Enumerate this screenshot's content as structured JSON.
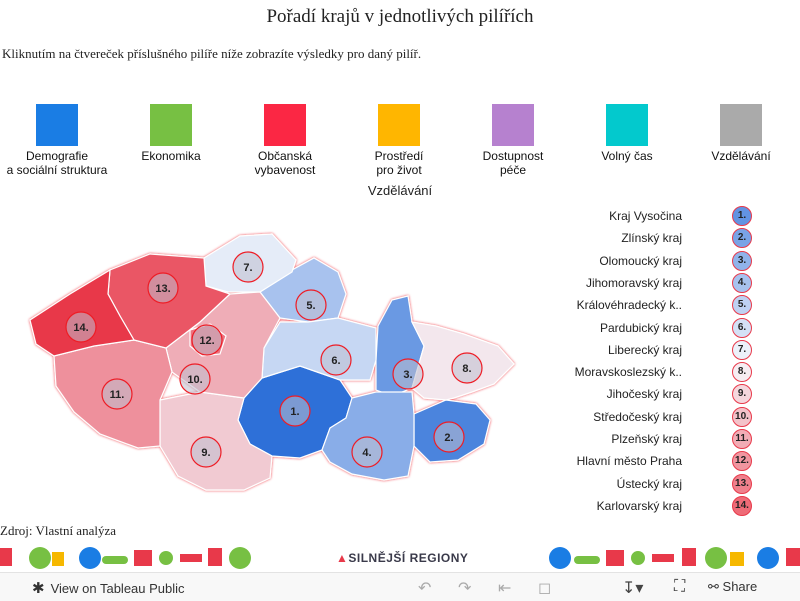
{
  "header": {
    "title": "Pořadí krajů v jednotlivých pilířích",
    "subtitle": "Kliknutím na čtvereček příslušného pilíře níže zobrazíte výsledky pro daný pilíř."
  },
  "pillars": [
    {
      "label": "Demografie\na sociální struktura",
      "color": "#1a7de4"
    },
    {
      "label": "Ekonomika",
      "color": "#77c043"
    },
    {
      "label": "Občanská\nvybavenost",
      "color": "#fb2744"
    },
    {
      "label": "Prostředí\npro život",
      "color": "#ffb600"
    },
    {
      "label": "Dostupnost\npéče",
      "color": "#b681cf"
    },
    {
      "label": "Volný čas",
      "color": "#03c9cd"
    },
    {
      "label": "Vzdělávání",
      "color": "#aaaaaa"
    }
  ],
  "selected_pillar": "Vzdělávání",
  "regions": [
    {
      "name": "Kraj Vysočina",
      "rank": "1."
    },
    {
      "name": "Zlínský kraj",
      "rank": "2."
    },
    {
      "name": "Olomoucký kraj",
      "rank": "3."
    },
    {
      "name": "Jihomoravský kraj",
      "rank": "4."
    },
    {
      "name": "Královéhradecký k..",
      "rank": "5."
    },
    {
      "name": "Pardubický kraj",
      "rank": "6."
    },
    {
      "name": "Liberecký kraj",
      "rank": "7."
    },
    {
      "name": "Moravskoslezský k..",
      "rank": "8."
    },
    {
      "name": "Jihočeský kraj",
      "rank": "9."
    },
    {
      "name": "Středočeský kraj",
      "rank": "10."
    },
    {
      "name": "Plzeňský kraj",
      "rank": "11."
    },
    {
      "name": "Hlavní město Praha",
      "rank": "12."
    },
    {
      "name": "Ústecký kraj",
      "rank": "13."
    },
    {
      "name": "Karlovarský kraj",
      "rank": "14."
    }
  ],
  "source": "Zdroj: Vlastní analýza",
  "brand": {
    "text": "SILNĚJŠÍ REGIONY"
  },
  "toolbar": {
    "view_label": "View on Tableau Public",
    "share_label": "Share",
    "icons": [
      "tableau-icon",
      "undo-icon",
      "redo-icon",
      "revert-icon",
      "pause-icon",
      "download-icon",
      "fullscreen-icon",
      "share-icon"
    ]
  },
  "colors": {
    "best": "#2e6fd8",
    "worst": "#e8394a",
    "mid": "#f4f6fb",
    "border": "#ee1c25"
  }
}
